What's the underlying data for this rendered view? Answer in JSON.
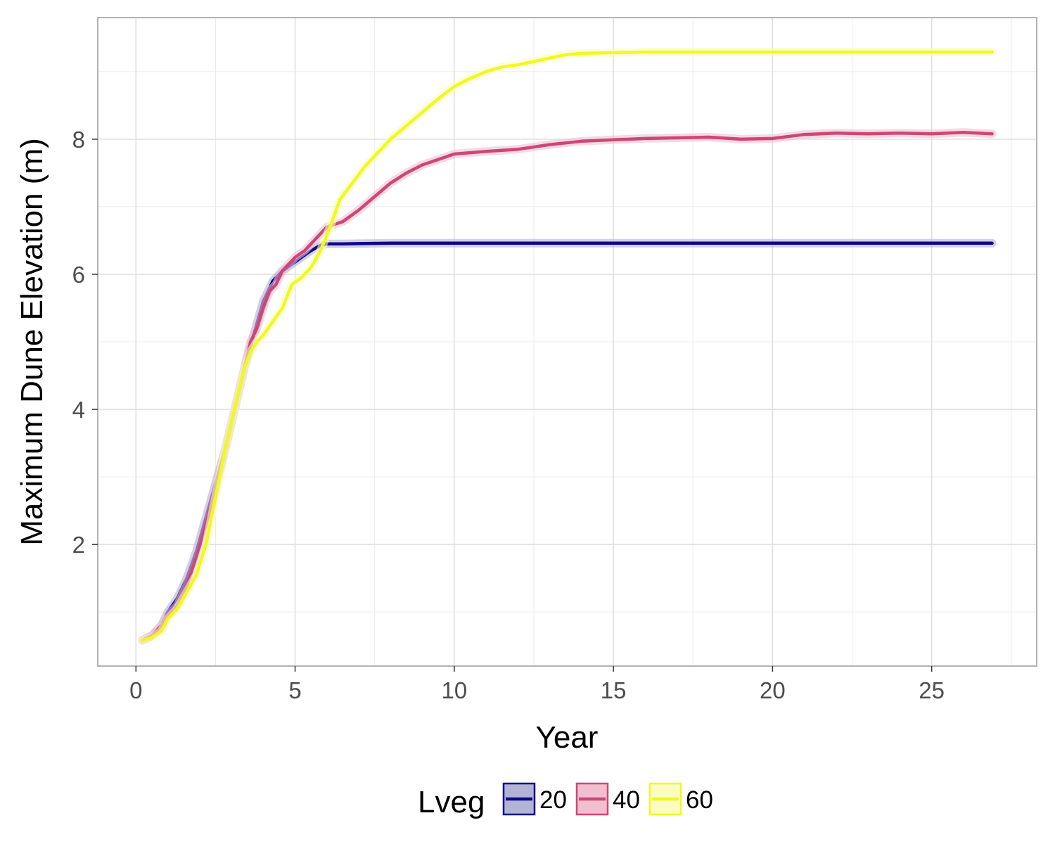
{
  "chart_data": {
    "type": "line",
    "xlabel": "Year",
    "ylabel": "Maximum Dune Elevation (m)",
    "xlim": [
      -1.2,
      28.3
    ],
    "ylim": [
      0.2,
      9.8
    ],
    "x_ticks": [
      0,
      5,
      10,
      15,
      20,
      25
    ],
    "y_ticks": [
      2,
      4,
      6,
      8
    ],
    "grid": true,
    "legend": {
      "title": "Lveg",
      "position": "bottom"
    },
    "series": [
      {
        "name": "20",
        "color": "#0d0887",
        "fill": "#b3b3d6",
        "x": [
          0.2,
          0.5,
          0.8,
          1.0,
          1.3,
          1.6,
          1.9,
          2.2,
          2.5,
          2.8,
          3.1,
          3.4,
          3.7,
          4.0,
          4.3,
          4.6,
          4.9,
          5.2,
          5.5,
          5.8,
          6.0,
          6.5,
          8.0,
          10.0,
          15.0,
          20.0,
          25.0,
          26.9
        ],
        "y": [
          0.58,
          0.65,
          0.8,
          1.0,
          1.2,
          1.5,
          1.9,
          2.4,
          2.9,
          3.4,
          4.0,
          4.6,
          5.1,
          5.6,
          5.9,
          6.05,
          6.15,
          6.25,
          6.35,
          6.43,
          6.45,
          6.45,
          6.46,
          6.46,
          6.46,
          6.46,
          6.46,
          6.46
        ]
      },
      {
        "name": "40",
        "color": "#cc4778",
        "fill": "#f0c0d0",
        "x": [
          0.2,
          0.5,
          0.8,
          1.0,
          1.3,
          1.6,
          1.9,
          2.2,
          2.5,
          2.8,
          3.1,
          3.4,
          3.6,
          3.8,
          4.0,
          4.2,
          4.4,
          4.6,
          4.8,
          5.0,
          5.3,
          5.6,
          6.0,
          6.5,
          7.0,
          7.5,
          8.0,
          8.5,
          9.0,
          9.5,
          10.0,
          11.0,
          12.0,
          13.0,
          14.0,
          15.0,
          16.0,
          17.0,
          18.0,
          19.0,
          20.0,
          21.0,
          22.0,
          23.0,
          24.0,
          25.0,
          26.0,
          26.9
        ],
        "y": [
          0.58,
          0.65,
          0.8,
          0.95,
          1.1,
          1.4,
          1.8,
          2.3,
          2.8,
          3.4,
          4.0,
          4.6,
          5.0,
          5.2,
          5.5,
          5.75,
          5.85,
          6.05,
          6.15,
          6.25,
          6.35,
          6.5,
          6.7,
          6.78,
          6.95,
          7.15,
          7.35,
          7.5,
          7.62,
          7.7,
          7.78,
          7.82,
          7.85,
          7.92,
          7.97,
          7.99,
          8.01,
          8.02,
          8.03,
          8.0,
          8.01,
          8.07,
          8.09,
          8.08,
          8.09,
          8.08,
          8.1,
          8.08
        ]
      },
      {
        "name": "60",
        "color": "#f0f921",
        "fill": "#fafcc0",
        "x": [
          0.2,
          0.5,
          0.8,
          1.0,
          1.3,
          1.6,
          1.9,
          2.2,
          2.5,
          2.8,
          3.1,
          3.4,
          3.6,
          3.8,
          4.0,
          4.3,
          4.6,
          4.9,
          5.2,
          5.5,
          5.8,
          6.1,
          6.4,
          6.8,
          7.2,
          7.6,
          8.0,
          8.5,
          9.0,
          9.5,
          10.0,
          10.5,
          11.0,
          11.5,
          12.0,
          12.5,
          13.0,
          13.5,
          14.0,
          15.0,
          16.0,
          18.0,
          20.0,
          22.0,
          25.0,
          26.9
        ],
        "y": [
          0.58,
          0.62,
          0.72,
          0.9,
          1.05,
          1.3,
          1.55,
          2.0,
          2.7,
          3.4,
          4.0,
          4.6,
          4.85,
          5.0,
          5.1,
          5.3,
          5.5,
          5.85,
          5.95,
          6.1,
          6.35,
          6.7,
          7.1,
          7.35,
          7.6,
          7.8,
          8.0,
          8.2,
          8.4,
          8.6,
          8.78,
          8.9,
          9.0,
          9.07,
          9.1,
          9.15,
          9.2,
          9.25,
          9.27,
          9.28,
          9.29,
          9.29,
          9.29,
          9.29,
          9.29,
          9.29
        ]
      }
    ]
  }
}
